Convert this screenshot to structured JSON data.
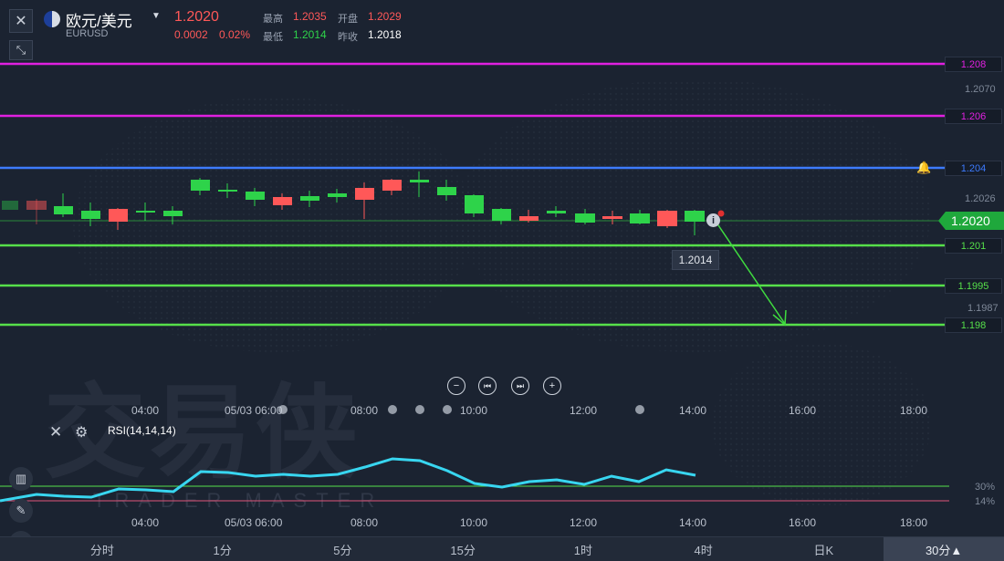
{
  "header": {
    "symbol_name": "欧元/美元",
    "symbol_code": "EURUSD",
    "price": "1.2020",
    "change": "0.0002",
    "change_pct": "0.02%",
    "high_label": "最高",
    "high_value": "1.2035",
    "open_label": "开盘",
    "open_value": "1.2029",
    "low_label": "最低",
    "low_value": "1.2014",
    "prev_close_label": "昨收",
    "prev_close_value": "1.2018"
  },
  "watermark": {
    "text": "交易侠",
    "subtext": "TRADER MASTER"
  },
  "price_axis": {
    "labels": [
      "1.2070",
      "1.2026",
      "1.1987"
    ],
    "current_price": "1.2020",
    "low_tooltip": "1.2014"
  },
  "horizontal_lines": [
    {
      "label": "1.208",
      "color": "#e020e0"
    },
    {
      "label": "1.206",
      "color": "#e020e0"
    },
    {
      "label": "1.204",
      "color": "#3d7bff"
    },
    {
      "label": "1.201",
      "color": "#56e04a"
    },
    {
      "label": "1.1995",
      "color": "#56e04a"
    },
    {
      "label": "1.198",
      "color": "#56e04a"
    }
  ],
  "time_axis": [
    "04:00",
    "05/03 06:00",
    "08:00",
    "10:00",
    "12:00",
    "14:00",
    "16:00",
    "18:00"
  ],
  "nav_buttons": [
    "minus",
    "step-back",
    "step-forward",
    "plus"
  ],
  "indicator": {
    "name": "RSI(14,14,14)",
    "level_high": "30%",
    "level_low": "14%"
  },
  "timeframes": [
    {
      "label": "分时",
      "active": false
    },
    {
      "label": "1分",
      "active": false
    },
    {
      "label": "5分",
      "active": false
    },
    {
      "label": "15分",
      "active": false
    },
    {
      "label": "1时",
      "active": false
    },
    {
      "label": "4时",
      "active": false
    },
    {
      "label": "日K",
      "active": false
    },
    {
      "label": "30分▲",
      "active": true
    }
  ],
  "colors": {
    "up": "#2ed34a",
    "down": "#ff5858",
    "rsi": "#38d6f0",
    "arrow": "#3fdc3f"
  },
  "icons": {
    "close": "close-icon",
    "collapse": "collapse-icon",
    "flag": "us-eu-flag-icon",
    "dropdown": "chevron-down-icon",
    "alarm": "bell-icon",
    "info": "info-icon",
    "settings": "gear-icon",
    "candle_type": "candlestick-icon",
    "draw": "pencil-icon",
    "indicator": "indicator-icon"
  }
}
